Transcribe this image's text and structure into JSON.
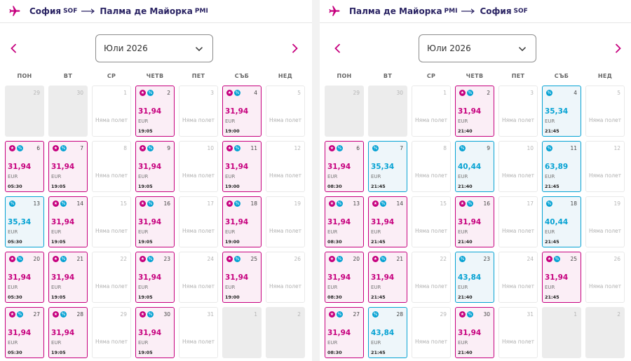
{
  "panels": [
    {
      "from_city": "София",
      "from_code": "SOF",
      "to_city": "Палма де Майорка",
      "to_code": "PMI",
      "month": "Юли 2026",
      "weekdays": [
        "ПОН",
        "ВТ",
        "СР",
        "ЧЕТВ",
        "ПЕТ",
        "СЪБ",
        "НЕД"
      ],
      "days": [
        {
          "day": "29",
          "type": "out"
        },
        {
          "day": "30",
          "type": "out"
        },
        {
          "day": "1",
          "type": "none",
          "text": "Няма полет"
        },
        {
          "day": "2",
          "type": "pink",
          "badges": [
            "star",
            "pct"
          ],
          "price": "31,94",
          "currency": "EUR",
          "time": "19:05"
        },
        {
          "day": "3",
          "type": "none",
          "text": "Няма полет"
        },
        {
          "day": "4",
          "type": "pink",
          "badges": [
            "star",
            "pct"
          ],
          "price": "31,94",
          "currency": "EUR",
          "time": "19:00"
        },
        {
          "day": "5",
          "type": "none",
          "text": "Няма полет"
        },
        {
          "day": "6",
          "type": "pink",
          "badges": [
            "star",
            "pct"
          ],
          "price": "31,94",
          "currency": "EUR",
          "time": "05:30"
        },
        {
          "day": "7",
          "type": "pink",
          "badges": [
            "star",
            "pct"
          ],
          "price": "31,94",
          "currency": "EUR",
          "time": "19:05"
        },
        {
          "day": "8",
          "type": "none",
          "text": "Няма полет"
        },
        {
          "day": "9",
          "type": "pink",
          "badges": [
            "star",
            "pct"
          ],
          "price": "31,94",
          "currency": "EUR",
          "time": "19:05"
        },
        {
          "day": "10",
          "type": "none",
          "text": "Няма полет"
        },
        {
          "day": "11",
          "type": "pink",
          "badges": [
            "star",
            "pct"
          ],
          "price": "31,94",
          "currency": "EUR",
          "time": "19:00"
        },
        {
          "day": "12",
          "type": "none",
          "text": "Няма полет"
        },
        {
          "day": "13",
          "type": "blue",
          "badges": [
            "pct"
          ],
          "price": "35,34",
          "currency": "EUR",
          "time": "05:30"
        },
        {
          "day": "14",
          "type": "pink",
          "badges": [
            "star",
            "pct"
          ],
          "price": "31,94",
          "currency": "EUR",
          "time": "19:05"
        },
        {
          "day": "15",
          "type": "none",
          "text": "Няма полет"
        },
        {
          "day": "16",
          "type": "pink",
          "badges": [
            "star",
            "pct"
          ],
          "price": "31,94",
          "currency": "EUR",
          "time": "19:05"
        },
        {
          "day": "17",
          "type": "none",
          "text": "Няма полет"
        },
        {
          "day": "18",
          "type": "pink",
          "badges": [
            "star",
            "pct"
          ],
          "price": "31,94",
          "currency": "EUR",
          "time": "19:00"
        },
        {
          "day": "19",
          "type": "none",
          "text": "Няма полет"
        },
        {
          "day": "20",
          "type": "pink",
          "badges": [
            "star",
            "pct"
          ],
          "price": "31,94",
          "currency": "EUR",
          "time": "05:30"
        },
        {
          "day": "21",
          "type": "pink",
          "badges": [
            "star",
            "pct"
          ],
          "price": "31,94",
          "currency": "EUR",
          "time": "19:05"
        },
        {
          "day": "22",
          "type": "none",
          "text": "Няма полет"
        },
        {
          "day": "23",
          "type": "pink",
          "badges": [
            "star",
            "pct"
          ],
          "price": "31,94",
          "currency": "EUR",
          "time": "19:05"
        },
        {
          "day": "24",
          "type": "none",
          "text": "Няма полет"
        },
        {
          "day": "25",
          "type": "pink",
          "badges": [
            "star",
            "pct"
          ],
          "price": "31,94",
          "currency": "EUR",
          "time": "19:00"
        },
        {
          "day": "26",
          "type": "none",
          "text": "Няма полет"
        },
        {
          "day": "27",
          "type": "pink",
          "badges": [
            "star",
            "pct"
          ],
          "price": "31,94",
          "currency": "EUR",
          "time": "05:30"
        },
        {
          "day": "28",
          "type": "pink",
          "badges": [
            "star",
            "pct"
          ],
          "price": "31,94",
          "currency": "EUR",
          "time": "19:05"
        },
        {
          "day": "29",
          "type": "none",
          "text": "Няма полет"
        },
        {
          "day": "30",
          "type": "pink",
          "badges": [
            "star",
            "pct"
          ],
          "price": "31,94",
          "currency": "EUR",
          "time": "19:05"
        },
        {
          "day": "31",
          "type": "none",
          "text": "Няма полет"
        },
        {
          "day": "1",
          "type": "out"
        },
        {
          "day": "2",
          "type": "out"
        }
      ]
    },
    {
      "from_city": "Палма де Майорка",
      "from_code": "PMI",
      "to_city": "София",
      "to_code": "SOF",
      "month": "Юли 2026",
      "weekdays": [
        "ПОН",
        "ВТ",
        "СР",
        "ЧЕТВ",
        "ПЕТ",
        "СЪБ",
        "НЕД"
      ],
      "days": [
        {
          "day": "29",
          "type": "out"
        },
        {
          "day": "30",
          "type": "out"
        },
        {
          "day": "1",
          "type": "none",
          "text": "Няма полет"
        },
        {
          "day": "2",
          "type": "pink",
          "badges": [
            "star",
            "pct"
          ],
          "price": "31,94",
          "currency": "EUR",
          "time": "21:40"
        },
        {
          "day": "3",
          "type": "none",
          "text": "Няма полет"
        },
        {
          "day": "4",
          "type": "blue",
          "badges": [
            "pct"
          ],
          "price": "35,34",
          "currency": "EUR",
          "time": "21:45"
        },
        {
          "day": "5",
          "type": "none",
          "text": "Няма полет"
        },
        {
          "day": "6",
          "type": "pink",
          "badges": [
            "star",
            "pct"
          ],
          "price": "31,94",
          "currency": "EUR",
          "time": "08:30"
        },
        {
          "day": "7",
          "type": "blue",
          "badges": [
            "pct"
          ],
          "price": "35,34",
          "currency": "EUR",
          "time": "21:45"
        },
        {
          "day": "8",
          "type": "none",
          "text": "Няма полет"
        },
        {
          "day": "9",
          "type": "blue",
          "badges": [
            "pct"
          ],
          "price": "40,44",
          "currency": "EUR",
          "time": "21:40"
        },
        {
          "day": "10",
          "type": "none",
          "text": "Няма полет"
        },
        {
          "day": "11",
          "type": "blue",
          "badges": [
            "pct"
          ],
          "price": "63,89",
          "currency": "EUR",
          "time": "21:45"
        },
        {
          "day": "12",
          "type": "none",
          "text": "Няма полет"
        },
        {
          "day": "13",
          "type": "pink",
          "badges": [
            "star",
            "pct"
          ],
          "price": "31,94",
          "currency": "EUR",
          "time": "08:30"
        },
        {
          "day": "14",
          "type": "pink",
          "badges": [
            "star",
            "pct"
          ],
          "price": "31,94",
          "currency": "EUR",
          "time": "21:45"
        },
        {
          "day": "15",
          "type": "none",
          "text": "Няма полет"
        },
        {
          "day": "16",
          "type": "pink",
          "badges": [
            "star",
            "pct"
          ],
          "price": "31,94",
          "currency": "EUR",
          "time": "21:40"
        },
        {
          "day": "17",
          "type": "none",
          "text": "Няма полет"
        },
        {
          "day": "18",
          "type": "blue",
          "badges": [
            "pct"
          ],
          "price": "40,44",
          "currency": "EUR",
          "time": "21:45"
        },
        {
          "day": "19",
          "type": "none",
          "text": "Няма полет"
        },
        {
          "day": "20",
          "type": "pink",
          "badges": [
            "star",
            "pct"
          ],
          "price": "31,94",
          "currency": "EUR",
          "time": "08:30"
        },
        {
          "day": "21",
          "type": "pink",
          "badges": [
            "star",
            "pct"
          ],
          "price": "31,94",
          "currency": "EUR",
          "time": "21:45"
        },
        {
          "day": "22",
          "type": "none",
          "text": "Няма полет"
        },
        {
          "day": "23",
          "type": "blue",
          "badges": [
            "pct"
          ],
          "price": "43,84",
          "currency": "EUR",
          "time": "21:40"
        },
        {
          "day": "24",
          "type": "none",
          "text": "Няма полет"
        },
        {
          "day": "25",
          "type": "pink",
          "badges": [
            "star",
            "pct"
          ],
          "price": "31,94",
          "currency": "EUR",
          "time": "21:45"
        },
        {
          "day": "26",
          "type": "none",
          "text": "Няма полет"
        },
        {
          "day": "27",
          "type": "pink",
          "badges": [
            "star",
            "pct"
          ],
          "price": "31,94",
          "currency": "EUR",
          "time": "08:30"
        },
        {
          "day": "28",
          "type": "blue",
          "badges": [
            "pct"
          ],
          "price": "43,84",
          "currency": "EUR",
          "time": "21:45"
        },
        {
          "day": "29",
          "type": "none",
          "text": "Няма полет"
        },
        {
          "day": "30",
          "type": "pink",
          "badges": [
            "star",
            "pct"
          ],
          "price": "31,94",
          "currency": "EUR",
          "time": "21:40"
        },
        {
          "day": "31",
          "type": "none",
          "text": "Няма полет"
        },
        {
          "day": "1",
          "type": "out"
        },
        {
          "day": "2",
          "type": "out"
        }
      ]
    }
  ],
  "colors": {
    "brand": "#2a2363",
    "fare_club": "#c6007e",
    "discount": "#06a2d3"
  },
  "icons": {
    "plane": "plane-icon",
    "arrow": "arrow-right-icon",
    "prev": "chevron-left-icon",
    "next": "chevron-right-icon",
    "dropdown": "chevron-down-icon",
    "star": "star-badge-icon",
    "percent": "percent-badge-icon"
  }
}
